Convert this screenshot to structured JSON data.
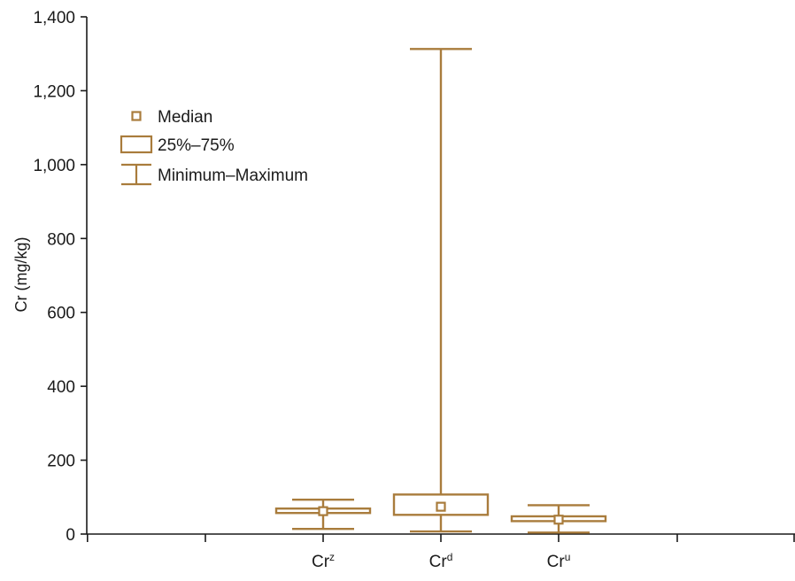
{
  "chart_data": {
    "type": "box",
    "ylabel": "Cr (mg/kg)",
    "ylim": [
      0,
      1400
    ],
    "yticks": [
      0,
      200,
      400,
      600,
      800,
      1000,
      1200,
      1400
    ],
    "ytick_labels": [
      "0",
      "200",
      "400",
      "600",
      "800",
      "1,000",
      "1,200",
      "1,400"
    ],
    "grid": false,
    "legend": {
      "position": "top-left",
      "items": [
        {
          "symbol": "median-marker",
          "label": "Median"
        },
        {
          "symbol": "box",
          "label": "25%–75%"
        },
        {
          "symbol": "whisker",
          "label": "Minimum–Maximum"
        }
      ]
    },
    "color": "#a97c3c",
    "categories": [
      {
        "base": "Cr",
        "sup": "z"
      },
      {
        "base": "Cr",
        "sup": "d"
      },
      {
        "base": "Cr",
        "sup": "u"
      }
    ],
    "boxes": [
      {
        "min": 14,
        "q1": 57,
        "median": 62,
        "q3": 69,
        "max": 93
      },
      {
        "min": 7,
        "q1": 52,
        "median": 74,
        "q3": 107,
        "max": 1313
      },
      {
        "min": 4,
        "q1": 35,
        "median": 39,
        "q3": 48,
        "max": 78
      }
    ]
  }
}
